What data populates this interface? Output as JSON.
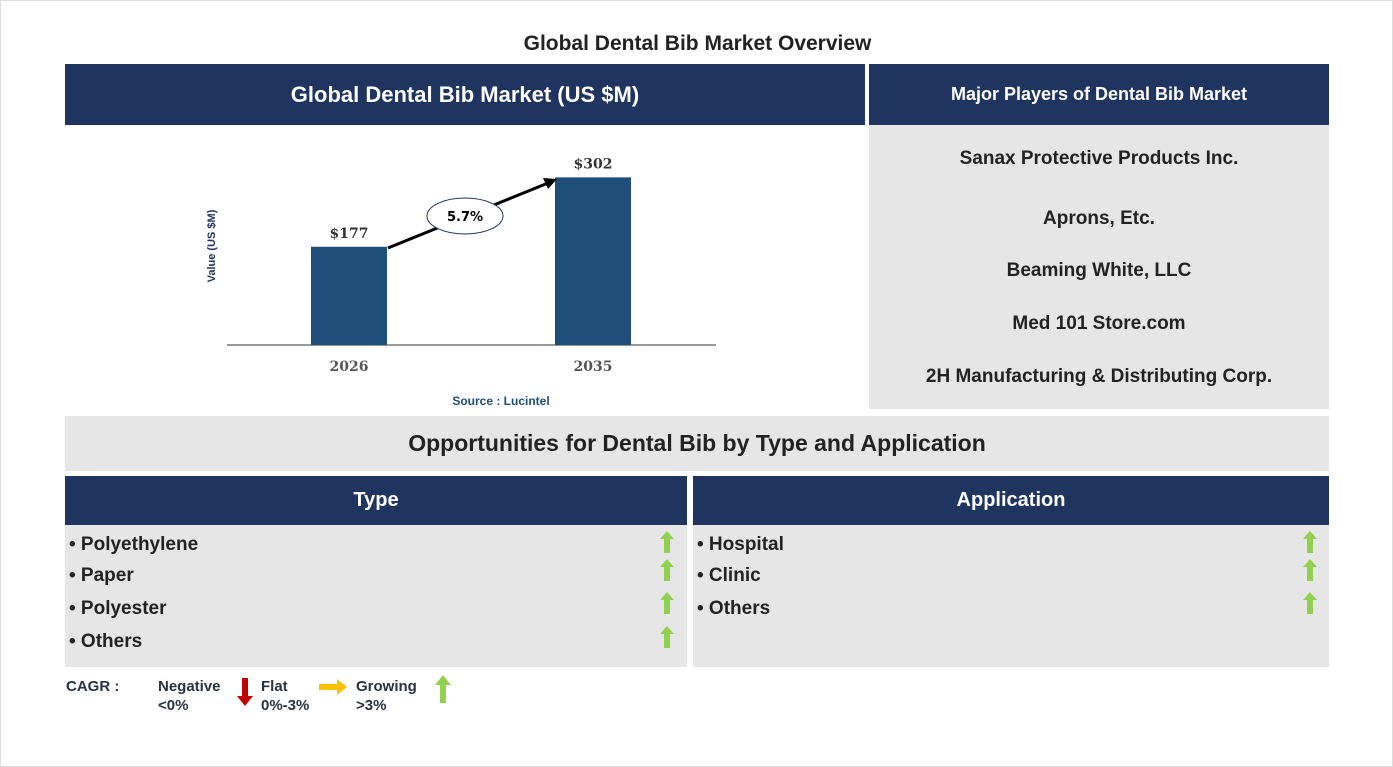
{
  "title": "Global Dental Bib Market Overview",
  "chart_panel": {
    "header": "Global Dental Bib Market (US $M)",
    "source": "Source : Lucintel"
  },
  "chart_data": {
    "type": "bar",
    "categories": [
      "2026",
      "2035"
    ],
    "values": [
      177,
      302
    ],
    "value_labels": [
      "$177",
      "$302"
    ],
    "ylabel": "Value (US $M)",
    "annotation": "5.7%",
    "bar_color": "#1f4e79"
  },
  "players": {
    "header": "Major Players of Dental Bib Market",
    "items": [
      "Sanax Protective Products Inc.",
      "Aprons, Etc.",
      "Beaming White, LLC",
      "Med 101 Store.com",
      "2H Manufacturing & Distributing Corp."
    ]
  },
  "opportunities": {
    "header": "Opportunities for Dental Bib by Type and Application",
    "type": {
      "header": "Type",
      "items": [
        {
          "label": "• Polyethylene",
          "trend": "growing"
        },
        {
          "label": "• Paper",
          "trend": "growing"
        },
        {
          "label": "• Polyester",
          "trend": "growing"
        },
        {
          "label": "• Others",
          "trend": "growing"
        }
      ]
    },
    "application": {
      "header": "Application",
      "items": [
        {
          "label": "• Hospital",
          "trend": "growing"
        },
        {
          "label": "• Clinic",
          "trend": "growing"
        },
        {
          "label": "• Others",
          "trend": "growing"
        }
      ]
    }
  },
  "legend": {
    "label": "CAGR :",
    "negative": "Negative",
    "negative_range": "<0%",
    "flat": "Flat",
    "flat_range": "0%-3%",
    "growing": "Growing",
    "growing_range": ">3%",
    "colors": {
      "negative": "#c00000",
      "flat": "#ffc000",
      "growing": "#92d050"
    }
  }
}
